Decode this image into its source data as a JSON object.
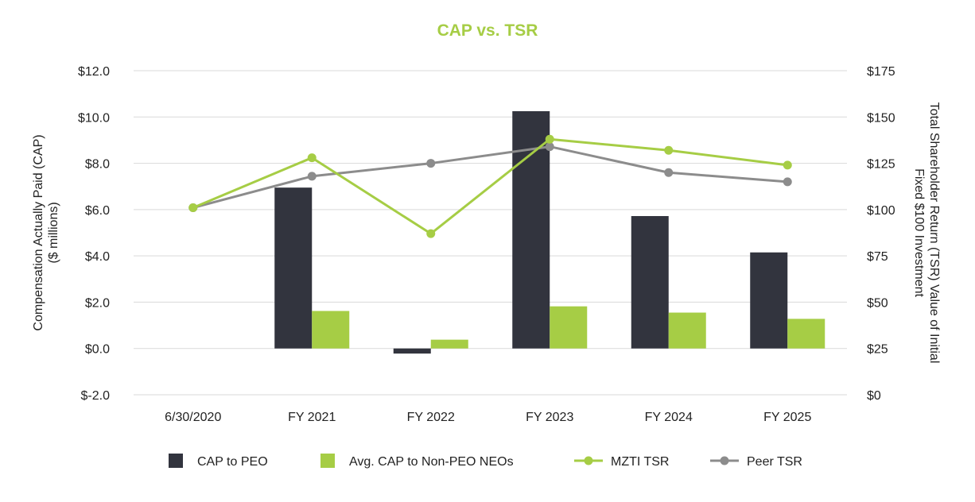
{
  "chart_data": {
    "type": "bar",
    "title": "CAP vs. TSR",
    "categories": [
      "6/30/2020",
      "FY 2021",
      "FY 2022",
      "FY 2023",
      "FY 2024",
      "FY 2025"
    ],
    "y_left": {
      "label_line1": "Compensation Actually Paid (CAP)",
      "label_line2": "($ millions)",
      "ylim": [
        -2.0,
        12.0
      ],
      "ticks": [
        12.0,
        10.0,
        8.0,
        6.0,
        4.0,
        2.0,
        0.0,
        -2.0
      ],
      "tick_labels": [
        "$12.0",
        "$10.0",
        "$8.0",
        "$6.0",
        "$4.0",
        "$2.0",
        "$0.0",
        "$-2.0"
      ]
    },
    "y_right": {
      "label_line1": "Total Shareholder Return (TSR) Value of Initial",
      "label_line2": "Fixed $100 Investment",
      "ylim": [
        0,
        175
      ],
      "ticks": [
        175,
        150,
        125,
        100,
        75,
        50,
        25,
        0
      ],
      "tick_labels": [
        "$175",
        "$150",
        "$125",
        "$100",
        "$75",
        "$50",
        "$25",
        "$0"
      ]
    },
    "grid": true,
    "legend_position": "bottom",
    "series": [
      {
        "name": "CAP to PEO",
        "kind": "bar",
        "axis": "left",
        "color": "#32343e",
        "values": [
          null,
          6.95,
          -0.22,
          10.25,
          5.72,
          4.15
        ]
      },
      {
        "name": "Avg. CAP to Non-PEO NEOs",
        "kind": "bar",
        "axis": "left",
        "color": "#a6cd45",
        "values": [
          null,
          1.62,
          0.38,
          1.82,
          1.55,
          1.28
        ]
      },
      {
        "name": "MZTI TSR",
        "kind": "line",
        "axis": "right",
        "color": "#a6cd45",
        "values": [
          101,
          128,
          87,
          138,
          132,
          124
        ]
      },
      {
        "name": "Peer TSR",
        "kind": "line",
        "axis": "right",
        "color": "#8c8c8c",
        "values": [
          101,
          118,
          125,
          134,
          120,
          115
        ]
      }
    ],
    "colors": {
      "title": "#a6cd45",
      "grid": "#d9d9d9"
    }
  }
}
